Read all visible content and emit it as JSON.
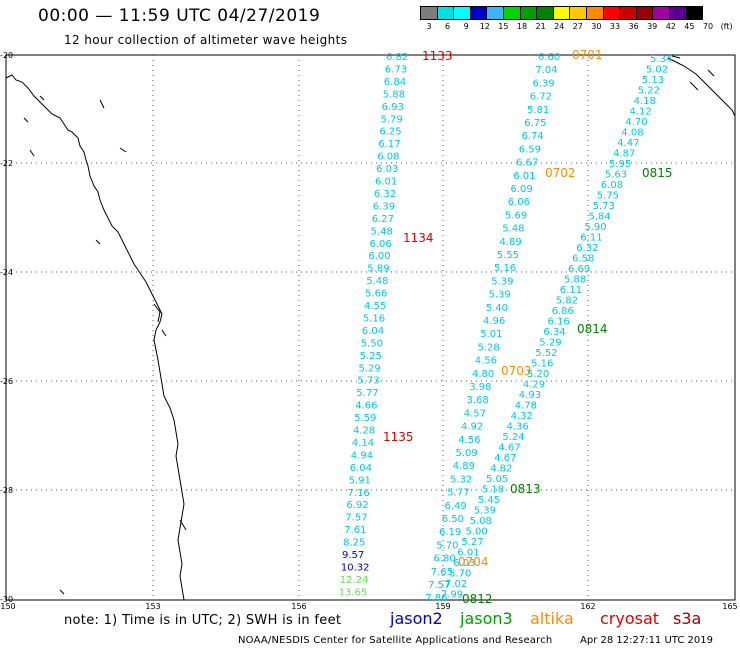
{
  "title": "00:00 — 11:59 UTC 04/27/2019",
  "subtitle": "12 hour collection of altimeter wave heights",
  "colorbar": {
    "labels": [
      "3",
      "6",
      "9",
      "12",
      "15",
      "18",
      "21",
      "24",
      "27",
      "30",
      "33",
      "36",
      "39",
      "42",
      "45",
      "70",
      "(ft)"
    ],
    "colors": [
      "#7d7d7d",
      "#00e1e1",
      "#00ffff",
      "#0000cd",
      "#3cb4ff",
      "#00d700",
      "#00a000",
      "#008200",
      "#ffff00",
      "#ffc800",
      "#ff8c00",
      "#ff0000",
      "#c80000",
      "#9b0000",
      "#a000a0",
      "#5a0090",
      "#000000"
    ]
  },
  "axes": {
    "lat_labels": [
      "-20",
      "-22",
      "-24",
      "-26",
      "-28",
      "-30"
    ],
    "lon_labels": [
      "150",
      "153",
      "156",
      "159",
      "162",
      "165"
    ]
  },
  "pass_labels": [
    {
      "text": "1133",
      "color": "#e00000"
    },
    {
      "text": "1134",
      "color": "#e00000"
    },
    {
      "text": "1135",
      "color": "#e00000"
    },
    {
      "text": "0701",
      "color": "#ff8c00"
    },
    {
      "text": "0702",
      "color": "#ff8c00"
    },
    {
      "text": "0703",
      "color": "#ff8c00"
    },
    {
      "text": "0704",
      "color": "#ff8c00"
    },
    {
      "text": "0815",
      "color": "#008000"
    },
    {
      "text": "0814",
      "color": "#008000"
    },
    {
      "text": "0813",
      "color": "#008000"
    },
    {
      "text": "0812",
      "color": "#008000"
    }
  ],
  "track_a": [
    "6.82",
    "6.73",
    "6.84",
    "5.88",
    "6.93",
    "5.79",
    "6.25",
    "6.17",
    "6.08",
    "6.03",
    "6.01",
    "6.32",
    "6.39",
    "6.27",
    "5.48",
    "6.06",
    "6.00",
    "5.89",
    "5.48",
    "5.66",
    "4.55",
    "5.16",
    "6.04",
    "5.50",
    "5.25",
    "5.29",
    "5.73",
    "5.77",
    "4.66",
    "5.59",
    "4.28",
    "4.14",
    "4.94",
    "6.04",
    "5.91",
    "7.16",
    "6.92",
    "7.57",
    "7.61",
    "8.25",
    "9.57",
    "10.32",
    "12.24",
    "13.65"
  ],
  "track_a_colors": {
    "9.57": "#0000cd",
    "10.32": "#0000cd",
    "12.24": "#66dd55",
    "13.65": "#66dd55"
  },
  "track_b": [
    "6.60",
    "7.04",
    "6.39",
    "6.72",
    "5.81",
    "6.75",
    "6.74",
    "6.59",
    "6.67",
    "6.01",
    "6.09",
    "6.06",
    "5.69",
    "5.48",
    "4.89",
    "5.55",
    "5.16",
    "5.39",
    "5.39",
    "5.40",
    "4.96",
    "5.01",
    "5.28",
    "4.56",
    "4.80",
    "3.98",
    "3.68",
    "4.57",
    "4.92",
    "4.56",
    "5.09",
    "4.89",
    "5.32",
    "5.77",
    "6.49",
    "6.50",
    "6.19",
    "5.70",
    "6.80",
    "7.65",
    "7.57",
    "7.86"
  ],
  "track_c": [
    "5.34",
    "5.02",
    "5.13",
    "5.22",
    "4.18",
    "4.12",
    "4.70",
    "4.08",
    "4.47",
    "4.87",
    "5.95",
    "5.63",
    "6.08",
    "5.75",
    "5.73",
    "5.84",
    "5.90",
    "6.11",
    "6.32",
    "6.58",
    "6.69",
    "5.88",
    "6.11",
    "5.82",
    "6.86",
    "6.16",
    "6.34",
    "5.29",
    "5.52",
    "5.16",
    "5.20",
    "4.29",
    "4.93",
    "4.78",
    "4.32",
    "4.36",
    "5.24",
    "4.67",
    "4.67",
    "4.82",
    "5.05",
    "5.18",
    "5.45",
    "5.39",
    "5.08",
    "5.00",
    "5.27",
    "6.01",
    "6.03",
    "5.70",
    "7.02",
    "7.99"
  ],
  "legend": {
    "note": "note: 1) Time is in UTC; 2) SWH is in feet",
    "satellites": [
      {
        "name": "jason2",
        "color": "#0000cd"
      },
      {
        "name": "jason3",
        "color": "#00a000"
      },
      {
        "name": "altika",
        "color": "#ff8c00"
      },
      {
        "name": "cryosat",
        "color": "#e00000"
      },
      {
        "name": "s3a",
        "color": "#a00000"
      }
    ]
  },
  "credit": "NOAA/NESDIS Center for Satellite Applications and Research",
  "timestamp": "Apr 28 12:27:11 UTC 2019"
}
